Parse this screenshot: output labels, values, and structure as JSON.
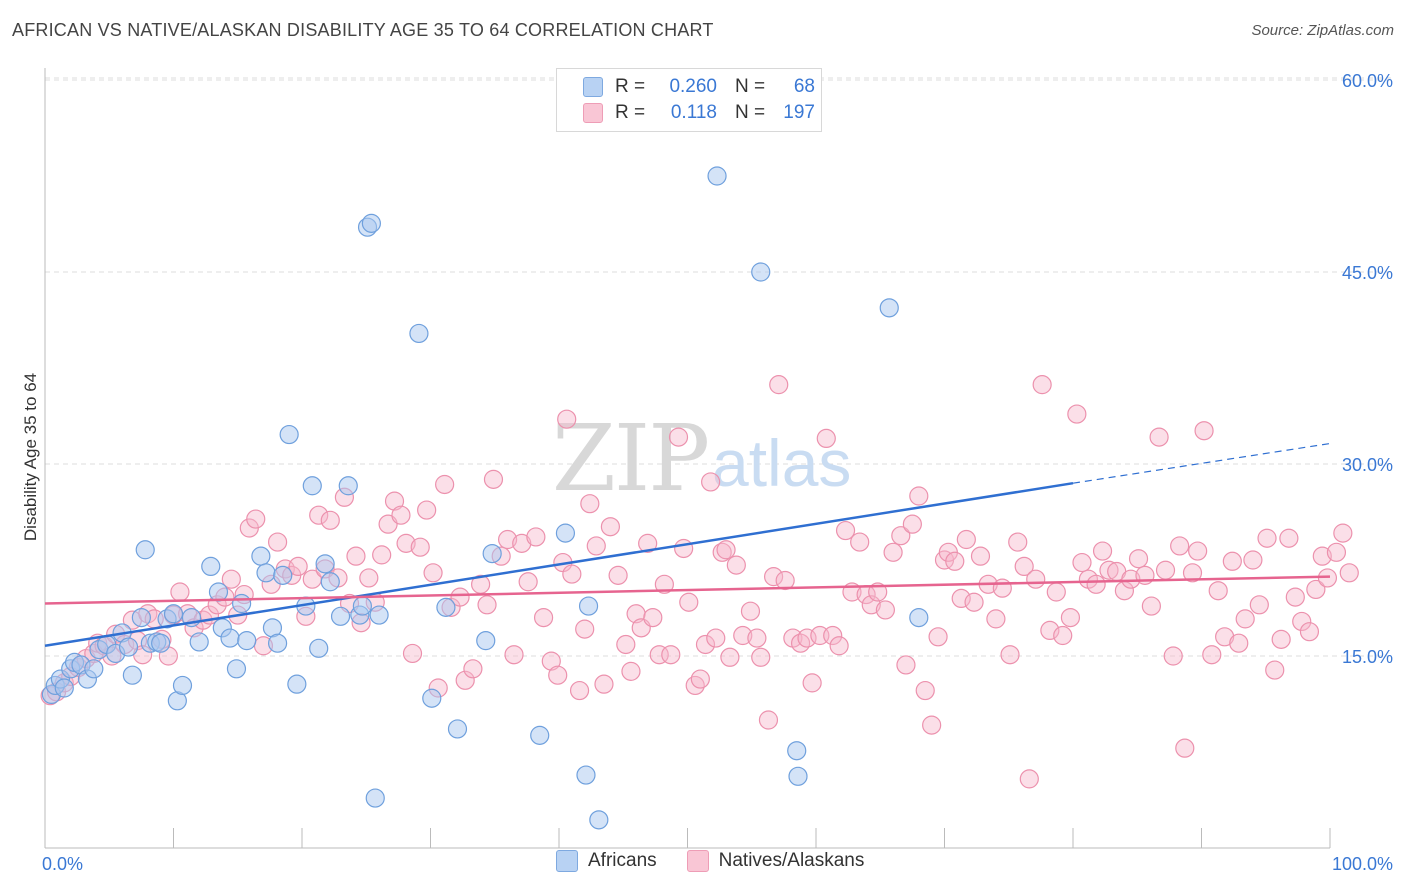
{
  "header": {
    "title": "AFRICAN VS NATIVE/ALASKAN DISABILITY AGE 35 TO 64 CORRELATION CHART",
    "source": "Source: ZipAtlas.com"
  },
  "legend_top": {
    "rows": [
      {
        "r_label": "R =",
        "r_value": "0.260",
        "n_label": "N =",
        "n_value": "68"
      },
      {
        "r_label": "R =",
        "r_value": "0.118",
        "n_label": "N =",
        "n_value": "197"
      }
    ]
  },
  "legend_bottom": {
    "items": [
      {
        "label": "Africans"
      },
      {
        "label": "Natives/Alaskans"
      }
    ]
  },
  "watermark": {
    "zip": "ZIP",
    "atlas": "atlas"
  },
  "colors": {
    "africans_fill": "#a9c8f0",
    "africans_stroke": "#6fa0dd",
    "africans_line": "#2f6fd1",
    "natives_fill": "#f7b8cb",
    "natives_stroke": "#ec91ad",
    "natives_line": "#e6648f",
    "tick_label": "#3a78d4",
    "grid": "#dddddd"
  },
  "chart_data": {
    "type": "scatter",
    "title": "AFRICAN VS NATIVE/ALASKAN DISABILITY AGE 35 TO 64 CORRELATION CHART",
    "ylabel": "Disability Age 35 to 64",
    "xlabel": "",
    "xlim": [
      0,
      100
    ],
    "ylim": [
      0,
      60
    ],
    "x_tick_labels": [
      "0.0%",
      "100.0%"
    ],
    "y_ticks": [
      15,
      30,
      45,
      60
    ],
    "y_tick_labels": [
      "15.0%",
      "30.0%",
      "45.0%",
      "60.0%"
    ],
    "grid": true,
    "legend_position": "top-center",
    "series": [
      {
        "name": "Africans",
        "R": 0.26,
        "N": 68,
        "trend": {
          "x": [
            0,
            80
          ],
          "y": [
            15.8,
            28.5
          ],
          "dashed_to": [
            100,
            31.6
          ]
        },
        "points": [
          [
            0.5,
            12.0
          ],
          [
            0.8,
            12.7
          ],
          [
            1.2,
            13.2
          ],
          [
            1.5,
            12.5
          ],
          [
            2.0,
            14.0
          ],
          [
            2.3,
            14.5
          ],
          [
            2.8,
            14.3
          ],
          [
            3.3,
            13.2
          ],
          [
            3.8,
            14.0
          ],
          [
            4.2,
            15.5
          ],
          [
            4.8,
            15.9
          ],
          [
            5.5,
            15.2
          ],
          [
            6.0,
            16.8
          ],
          [
            6.5,
            15.7
          ],
          [
            6.8,
            13.5
          ],
          [
            7.5,
            18.0
          ],
          [
            7.8,
            23.3
          ],
          [
            8.2,
            16.0
          ],
          [
            8.7,
            16.1
          ],
          [
            9.0,
            16.0
          ],
          [
            9.5,
            17.9
          ],
          [
            10.0,
            18.3
          ],
          [
            10.3,
            11.5
          ],
          [
            10.7,
            12.7
          ],
          [
            11.4,
            18.0
          ],
          [
            12.0,
            16.1
          ],
          [
            12.9,
            22.0
          ],
          [
            13.5,
            20.0
          ],
          [
            13.8,
            17.2
          ],
          [
            14.4,
            16.4
          ],
          [
            14.9,
            14.0
          ],
          [
            15.3,
            19.1
          ],
          [
            15.7,
            16.2
          ],
          [
            16.8,
            22.8
          ],
          [
            17.2,
            21.5
          ],
          [
            17.7,
            17.2
          ],
          [
            18.1,
            16.0
          ],
          [
            18.5,
            21.3
          ],
          [
            19.0,
            32.3
          ],
          [
            19.6,
            12.8
          ],
          [
            20.3,
            18.9
          ],
          [
            20.8,
            28.3
          ],
          [
            21.3,
            15.6
          ],
          [
            21.8,
            22.2
          ],
          [
            22.2,
            20.8
          ],
          [
            23.0,
            18.1
          ],
          [
            23.6,
            28.3
          ],
          [
            24.5,
            18.2
          ],
          [
            24.7,
            18.9
          ],
          [
            25.1,
            48.5
          ],
          [
            25.4,
            48.8
          ],
          [
            25.7,
            3.9
          ],
          [
            26.0,
            18.2
          ],
          [
            29.1,
            40.2
          ],
          [
            30.1,
            11.7
          ],
          [
            31.2,
            18.8
          ],
          [
            32.1,
            9.3
          ],
          [
            34.3,
            16.2
          ],
          [
            34.8,
            23.0
          ],
          [
            38.5,
            8.8
          ],
          [
            40.5,
            24.6
          ],
          [
            42.1,
            5.7
          ],
          [
            42.3,
            18.9
          ],
          [
            43.1,
            2.2
          ],
          [
            52.3,
            52.5
          ],
          [
            55.7,
            45.0
          ],
          [
            58.5,
            7.6
          ],
          [
            58.6,
            5.6
          ],
          [
            65.7,
            42.2
          ],
          [
            68.0,
            18.0
          ]
        ]
      },
      {
        "name": "Natives/Alaskans",
        "R": 0.118,
        "N": 197,
        "trend": {
          "x": [
            0,
            100
          ],
          "y": [
            19.1,
            21.2
          ]
        },
        "points": [
          [
            0.4,
            11.9
          ],
          [
            0.9,
            12.2
          ],
          [
            1.5,
            12.9
          ],
          [
            2.0,
            13.4
          ],
          [
            2.6,
            14.1
          ],
          [
            3.2,
            14.8
          ],
          [
            3.8,
            15.2
          ],
          [
            4.1,
            16.0
          ],
          [
            4.6,
            15.8
          ],
          [
            5.2,
            15.0
          ],
          [
            5.5,
            16.7
          ],
          [
            6.2,
            15.9
          ],
          [
            6.8,
            17.8
          ],
          [
            7.2,
            16.2
          ],
          [
            7.6,
            15.1
          ],
          [
            8.0,
            18.3
          ],
          [
            8.5,
            17.9
          ],
          [
            9.1,
            16.3
          ],
          [
            9.6,
            15.0
          ],
          [
            10.0,
            18.2
          ],
          [
            10.5,
            20.0
          ],
          [
            11.1,
            18.3
          ],
          [
            11.6,
            17.2
          ],
          [
            12.3,
            17.8
          ],
          [
            12.8,
            18.2
          ],
          [
            13.4,
            19.0
          ],
          [
            14.0,
            19.6
          ],
          [
            14.5,
            21.0
          ],
          [
            15.0,
            18.2
          ],
          [
            15.5,
            19.8
          ],
          [
            15.9,
            25.0
          ],
          [
            16.4,
            25.7
          ],
          [
            17.0,
            15.8
          ],
          [
            17.6,
            20.6
          ],
          [
            18.1,
            23.9
          ],
          [
            18.7,
            21.8
          ],
          [
            19.2,
            21.3
          ],
          [
            19.7,
            22.0
          ],
          [
            20.3,
            18.1
          ],
          [
            20.8,
            21.0
          ],
          [
            21.3,
            26.0
          ],
          [
            21.8,
            21.8
          ],
          [
            22.2,
            25.6
          ],
          [
            22.8,
            21.1
          ],
          [
            23.3,
            27.4
          ],
          [
            23.7,
            19.1
          ],
          [
            24.2,
            22.8
          ],
          [
            24.6,
            17.6
          ],
          [
            25.2,
            21.1
          ],
          [
            25.7,
            19.2
          ],
          [
            26.2,
            22.9
          ],
          [
            26.7,
            25.3
          ],
          [
            27.2,
            27.1
          ],
          [
            27.7,
            26.0
          ],
          [
            28.1,
            23.8
          ],
          [
            28.6,
            15.2
          ],
          [
            29.2,
            23.5
          ],
          [
            29.7,
            26.4
          ],
          [
            30.2,
            21.5
          ],
          [
            30.6,
            12.5
          ],
          [
            31.1,
            28.4
          ],
          [
            31.6,
            18.8
          ],
          [
            32.3,
            19.6
          ],
          [
            32.7,
            13.1
          ],
          [
            33.3,
            14.0
          ],
          [
            33.9,
            20.6
          ],
          [
            34.4,
            19.0
          ],
          [
            34.9,
            28.8
          ],
          [
            35.5,
            22.8
          ],
          [
            36.0,
            24.1
          ],
          [
            36.5,
            15.1
          ],
          [
            37.1,
            23.8
          ],
          [
            37.6,
            20.8
          ],
          [
            38.2,
            24.3
          ],
          [
            38.8,
            18.0
          ],
          [
            39.4,
            14.6
          ],
          [
            39.9,
            13.5
          ],
          [
            40.3,
            22.3
          ],
          [
            40.6,
            33.5
          ],
          [
            41.0,
            21.4
          ],
          [
            41.6,
            12.3
          ],
          [
            42.0,
            17.1
          ],
          [
            42.4,
            26.9
          ],
          [
            42.9,
            23.6
          ],
          [
            43.5,
            12.8
          ],
          [
            44.0,
            25.1
          ],
          [
            44.6,
            21.3
          ],
          [
            45.2,
            15.9
          ],
          [
            45.6,
            13.8
          ],
          [
            46.0,
            18.3
          ],
          [
            46.4,
            17.2
          ],
          [
            46.9,
            23.8
          ],
          [
            47.3,
            18.0
          ],
          [
            47.8,
            15.1
          ],
          [
            48.2,
            20.6
          ],
          [
            48.7,
            15.1
          ],
          [
            49.3,
            32.1
          ],
          [
            49.7,
            23.4
          ],
          [
            50.1,
            19.2
          ],
          [
            50.6,
            12.7
          ],
          [
            51.0,
            13.2
          ],
          [
            51.4,
            15.9
          ],
          [
            51.8,
            28.6
          ],
          [
            52.2,
            16.4
          ],
          [
            52.7,
            23.1
          ],
          [
            53.0,
            23.3
          ],
          [
            53.3,
            14.9
          ],
          [
            53.8,
            22.1
          ],
          [
            54.3,
            16.6
          ],
          [
            54.9,
            18.5
          ],
          [
            55.4,
            16.4
          ],
          [
            55.7,
            14.9
          ],
          [
            56.3,
            10.0
          ],
          [
            56.7,
            21.2
          ],
          [
            57.1,
            36.2
          ],
          [
            57.6,
            20.9
          ],
          [
            58.2,
            16.4
          ],
          [
            58.8,
            16.0
          ],
          [
            59.3,
            16.4
          ],
          [
            59.7,
            12.9
          ],
          [
            60.3,
            16.6
          ],
          [
            60.8,
            32.0
          ],
          [
            61.3,
            16.6
          ],
          [
            61.8,
            15.8
          ],
          [
            62.3,
            24.8
          ],
          [
            62.8,
            20.0
          ],
          [
            63.4,
            23.9
          ],
          [
            63.9,
            19.8
          ],
          [
            64.3,
            19.0
          ],
          [
            64.8,
            20.0
          ],
          [
            65.4,
            18.6
          ],
          [
            66.0,
            23.1
          ],
          [
            66.6,
            24.4
          ],
          [
            67.0,
            14.3
          ],
          [
            67.5,
            25.3
          ],
          [
            68.0,
            27.5
          ],
          [
            68.5,
            12.3
          ],
          [
            69.0,
            9.6
          ],
          [
            69.5,
            16.5
          ],
          [
            70.0,
            22.5
          ],
          [
            70.3,
            23.1
          ],
          [
            70.8,
            22.4
          ],
          [
            71.3,
            19.5
          ],
          [
            71.7,
            24.1
          ],
          [
            72.3,
            19.2
          ],
          [
            72.8,
            22.8
          ],
          [
            73.4,
            20.6
          ],
          [
            74.0,
            17.9
          ],
          [
            74.5,
            20.3
          ],
          [
            75.1,
            15.1
          ],
          [
            75.7,
            23.9
          ],
          [
            76.2,
            22.0
          ],
          [
            76.6,
            5.4
          ],
          [
            77.1,
            21.0
          ],
          [
            77.6,
            36.2
          ],
          [
            78.2,
            17.0
          ],
          [
            78.7,
            20.0
          ],
          [
            79.2,
            16.6
          ],
          [
            79.8,
            18.0
          ],
          [
            80.3,
            33.9
          ],
          [
            80.7,
            22.3
          ],
          [
            81.2,
            21.0
          ],
          [
            81.8,
            20.6
          ],
          [
            82.3,
            23.2
          ],
          [
            82.8,
            21.7
          ],
          [
            83.4,
            21.6
          ],
          [
            84.0,
            20.1
          ],
          [
            84.5,
            21.0
          ],
          [
            85.1,
            22.6
          ],
          [
            85.6,
            21.3
          ],
          [
            86.1,
            18.9
          ],
          [
            86.7,
            32.1
          ],
          [
            87.2,
            21.7
          ],
          [
            87.8,
            15.0
          ],
          [
            88.3,
            23.6
          ],
          [
            88.7,
            7.8
          ],
          [
            89.3,
            21.5
          ],
          [
            89.7,
            23.2
          ],
          [
            90.2,
            32.6
          ],
          [
            90.8,
            15.1
          ],
          [
            91.3,
            20.1
          ],
          [
            91.8,
            16.5
          ],
          [
            92.4,
            22.4
          ],
          [
            92.9,
            16.0
          ],
          [
            93.4,
            17.9
          ],
          [
            94.0,
            22.5
          ],
          [
            94.5,
            19.0
          ],
          [
            95.1,
            24.2
          ],
          [
            95.7,
            13.9
          ],
          [
            96.2,
            16.3
          ],
          [
            96.8,
            24.2
          ],
          [
            97.3,
            19.6
          ],
          [
            97.8,
            17.7
          ],
          [
            98.4,
            16.9
          ],
          [
            98.9,
            20.2
          ],
          [
            99.4,
            22.8
          ],
          [
            99.8,
            21.1
          ],
          [
            100.5,
            23.1
          ],
          [
            101.0,
            24.6
          ],
          [
            101.5,
            21.5
          ]
        ]
      }
    ]
  }
}
